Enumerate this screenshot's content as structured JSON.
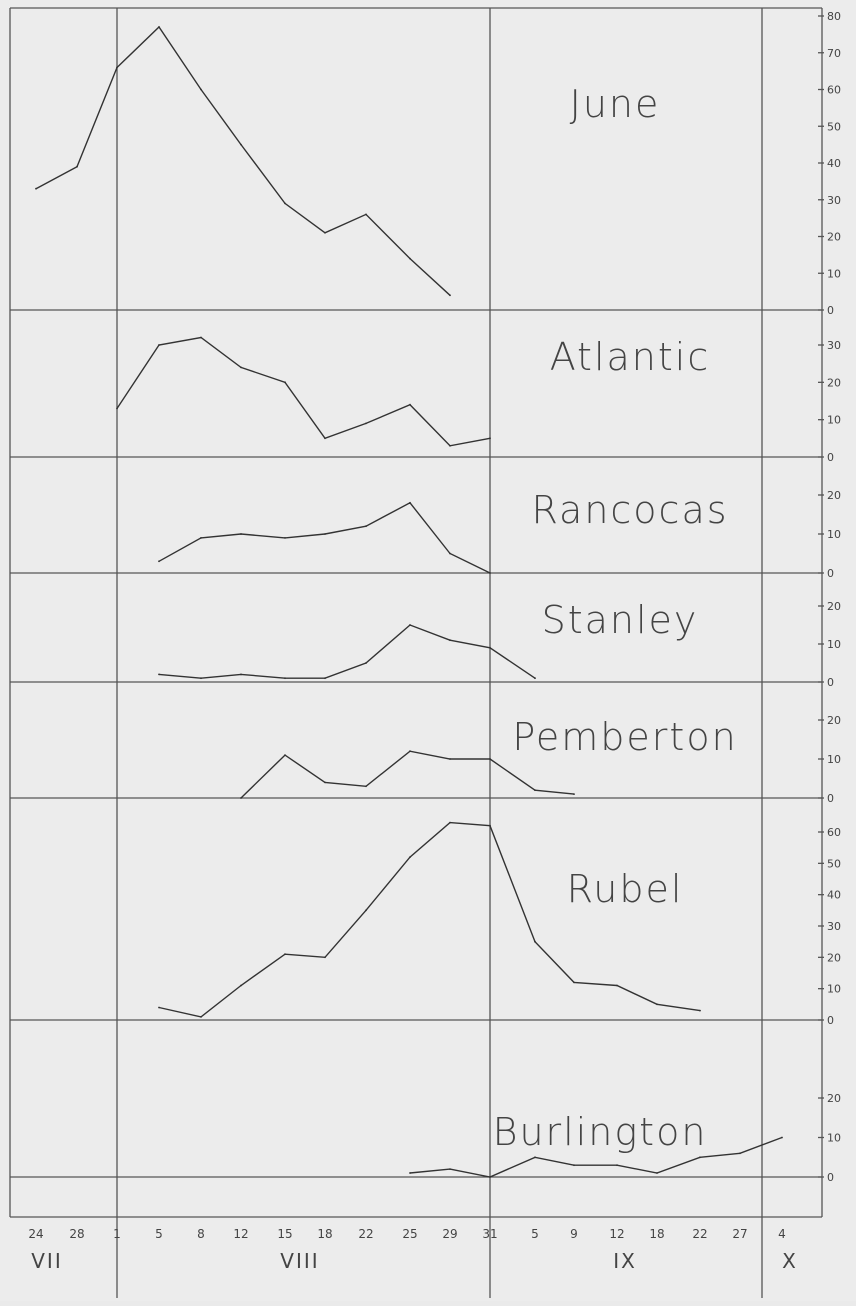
{
  "chart_data": [
    {
      "type": "line",
      "title": "June",
      "ylim": [
        0,
        80
      ],
      "yticks": [
        "0",
        "10",
        "20",
        "30",
        "40",
        "50",
        "60",
        "70",
        "80"
      ],
      "x": [
        "VII 24",
        "VII 28",
        "VIII 1",
        "VIII 5",
        "VIII 8",
        "VIII 12",
        "VIII 15",
        "VIII 18",
        "VIII 22",
        "VIII 25",
        "VIII 29"
      ],
      "values": [
        33,
        39,
        66,
        77,
        60,
        45,
        29,
        21,
        26,
        14,
        4
      ]
    },
    {
      "type": "line",
      "title": "Atlantic",
      "ylim": [
        0,
        30
      ],
      "yticks": [
        "0",
        "10",
        "20",
        "30"
      ],
      "x": [
        "VIII 1",
        "VIII 5",
        "VIII 8",
        "VIII 12",
        "VIII 15",
        "VIII 18",
        "VIII 22",
        "VIII 25",
        "VIII 29",
        "VIII 31"
      ],
      "values": [
        13,
        30,
        32,
        24,
        20,
        5,
        9,
        14,
        3,
        5
      ]
    },
    {
      "type": "line",
      "title": "Rancocas",
      "ylim": [
        0,
        20
      ],
      "yticks": [
        "0",
        "10",
        "20"
      ],
      "x": [
        "VIII 5",
        "VIII 8",
        "VIII 12",
        "VIII 15",
        "VIII 18",
        "VIII 22",
        "VIII 25",
        "VIII 29",
        "VIII 31"
      ],
      "values": [
        3,
        9,
        10,
        9,
        10,
        12,
        18,
        5,
        0
      ]
    },
    {
      "type": "line",
      "title": "Stanley",
      "ylim": [
        0,
        20
      ],
      "yticks": [
        "0",
        "10",
        "20"
      ],
      "x": [
        "VIII 5",
        "VIII 8",
        "VIII 12",
        "VIII 15",
        "VIII 18",
        "VIII 22",
        "VIII 25",
        "VIII 29",
        "VIII 31",
        "IX 5"
      ],
      "values": [
        2,
        1,
        2,
        1,
        1,
        5,
        15,
        11,
        9,
        1
      ]
    },
    {
      "type": "line",
      "title": "Pemberton",
      "ylim": [
        0,
        20
      ],
      "yticks": [
        "0",
        "10",
        "20"
      ],
      "x": [
        "VIII 12",
        "VIII 15",
        "VIII 18",
        "VIII 22",
        "VIII 25",
        "VIII 29",
        "VIII 31",
        "IX 5",
        "IX 9"
      ],
      "values": [
        0,
        11,
        4,
        3,
        12,
        10,
        10,
        2,
        1
      ]
    },
    {
      "type": "line",
      "title": "Rubel",
      "ylim": [
        0,
        60
      ],
      "yticks": [
        "0",
        "10",
        "20",
        "30",
        "40",
        "50",
        "60"
      ],
      "x": [
        "VIII 5",
        "VIII 8",
        "VIII 12",
        "VIII 15",
        "VIII 18",
        "VIII 22",
        "VIII 25",
        "VIII 29",
        "VIII 31",
        "IX 5",
        "IX 9",
        "IX 12",
        "IX 18",
        "IX 22"
      ],
      "values": [
        4,
        1,
        11,
        21,
        20,
        35,
        52,
        63,
        62,
        25,
        12,
        11,
        5,
        3
      ]
    },
    {
      "type": "line",
      "title": "Burlington",
      "ylim": [
        0,
        20
      ],
      "yticks": [
        "0",
        "10",
        "20"
      ],
      "x": [
        "VIII 25",
        "VIII 29",
        "VIII 31",
        "IX 5",
        "IX 9",
        "IX 12",
        "IX 18",
        "IX 22",
        "IX 27",
        "X 4"
      ],
      "values": [
        1,
        2,
        0,
        5,
        3,
        3,
        1,
        5,
        6,
        10
      ]
    }
  ],
  "x_axis": {
    "ticks": [
      "24",
      "28",
      "1",
      "5",
      "8",
      "12",
      "15",
      "18",
      "22",
      "25",
      "29",
      "31",
      "5",
      "9",
      "12",
      "18",
      "22",
      "27",
      "4"
    ],
    "months": [
      "VII",
      "VIII",
      "IX",
      "X"
    ]
  }
}
